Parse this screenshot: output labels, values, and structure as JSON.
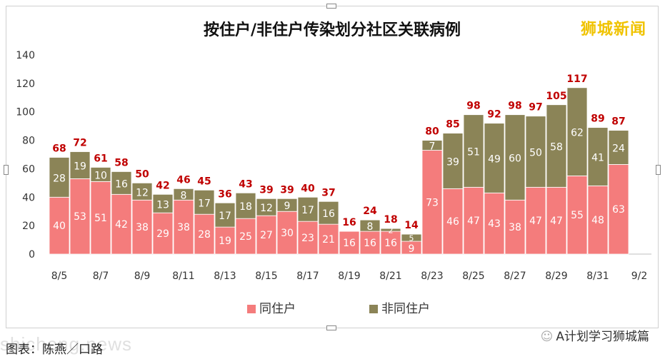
{
  "watermark": "狮城新闻",
  "footer": {
    "caption": "图表：陈燕／口路",
    "url": "shicheng.news",
    "account": "A计划学习狮城篇"
  },
  "colors": {
    "resident": "#f47c7c",
    "non_resident": "#8b8457",
    "total_label": "#c00000",
    "axis_text": "#333333"
  },
  "chart_data": {
    "type": "bar",
    "stacked": true,
    "title": "按住户/非住户传染划分社区关联病例",
    "xlabel": "",
    "ylabel": "",
    "ylim": [
      0,
      140
    ],
    "yticks": [
      0,
      20,
      40,
      60,
      80,
      100,
      120,
      140
    ],
    "legend_position": "bottom",
    "categories": [
      "8/5",
      "8/6",
      "8/7",
      "8/8",
      "8/9",
      "8/10",
      "8/11",
      "8/12",
      "8/13",
      "8/14",
      "8/15",
      "8/16",
      "8/17",
      "8/18",
      "8/19",
      "8/20",
      "8/21",
      "8/22",
      "8/23",
      "8/24",
      "8/25",
      "8/26",
      "8/27",
      "8/28",
      "8/29",
      "8/30",
      "8/31",
      "9/1"
    ],
    "x_tick_labels": [
      "8/5",
      "8/7",
      "8/9",
      "8/11",
      "8/13",
      "8/15",
      "8/17",
      "8/19",
      "8/21",
      "8/23",
      "8/25",
      "8/27",
      "8/29",
      "8/31",
      "9/2"
    ],
    "series": [
      {
        "name": "同住户",
        "color": "#f47c7c",
        "values": [
          40,
          53,
          51,
          42,
          38,
          29,
          38,
          28,
          19,
          25,
          27,
          30,
          23,
          21,
          16,
          16,
          16,
          9,
          73,
          46,
          47,
          43,
          38,
          47,
          47,
          55,
          48,
          63
        ]
      },
      {
        "name": "非同住户",
        "color": "#8b8457",
        "values": [
          28,
          19,
          10,
          16,
          12,
          13,
          8,
          17,
          17,
          18,
          12,
          9,
          17,
          16,
          0,
          8,
          2,
          5,
          7,
          39,
          51,
          49,
          60,
          50,
          58,
          62,
          41,
          24
        ]
      }
    ],
    "totals": [
      68,
      72,
      61,
      58,
      50,
      42,
      46,
      45,
      36,
      43,
      39,
      39,
      40,
      37,
      16,
      24,
      18,
      14,
      80,
      85,
      98,
      92,
      98,
      97,
      105,
      117,
      89,
      87
    ]
  }
}
